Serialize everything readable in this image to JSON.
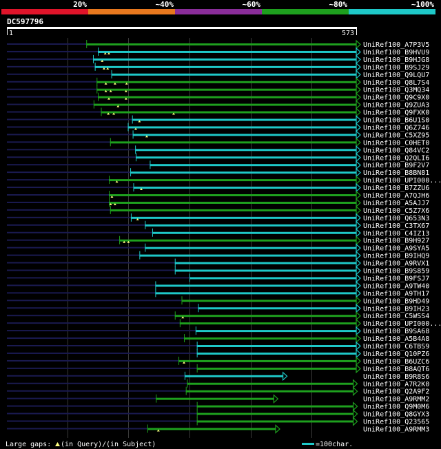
{
  "query_id": "DC597796",
  "query_start": "1",
  "query_end": "573",
  "query_length": 573,
  "identity_scale": [
    {
      "label": "20%",
      "color": "#e0142a"
    },
    {
      "label": "~40%",
      "color": "#e8781e"
    },
    {
      "label": "~60%",
      "color": "#8a2d9a"
    },
    {
      "label": "~80%",
      "color": "#1ea01e"
    },
    {
      "label": "~100%",
      "color": "#1ec8c8"
    }
  ],
  "hits": [
    {
      "id": "UniRef100_A7P3V5",
      "start": 131,
      "end": 573,
      "color": "#1ea01e",
      "gaps": []
    },
    {
      "id": "UniRef100_B9HVU9",
      "start": 150,
      "end": 573,
      "color": "#1ec8c8",
      "gaps": [
        162,
        168
      ]
    },
    {
      "id": "UniRef100_B9HJG8",
      "start": 142,
      "end": 573,
      "color": "#1ec8c8",
      "gaps": [
        157
      ]
    },
    {
      "id": "UniRef100_B9SJ29",
      "start": 145,
      "end": 573,
      "color": "#1ec8c8",
      "gaps": [
        160,
        166
      ]
    },
    {
      "id": "UniRef100_Q9LQU7",
      "start": 172,
      "end": 573,
      "color": "#1ec8c8",
      "gaps": []
    },
    {
      "id": "UniRef100_Q8L7S4",
      "start": 148,
      "end": 573,
      "color": "#1ea01e",
      "gaps": [
        163,
        178,
        197
      ]
    },
    {
      "id": "UniRef100_Q3MQ34",
      "start": 148,
      "end": 573,
      "color": "#1ea01e",
      "gaps": [
        163,
        171,
        196
      ]
    },
    {
      "id": "UniRef100_Q9C9X0",
      "start": 150,
      "end": 573,
      "color": "#1ea01e",
      "gaps": [
        168,
        196
      ]
    },
    {
      "id": "UniRef100_Q9ZUA3",
      "start": 143,
      "end": 573,
      "color": "#1ea01e",
      "gaps": [
        183
      ]
    },
    {
      "id": "UniRef100_Q9FXK0",
      "start": 155,
      "end": 573,
      "color": "#1ea01e",
      "gaps": [
        167,
        176,
        274
      ]
    },
    {
      "id": "UniRef100_B6U1S0",
      "start": 206,
      "end": 573,
      "color": "#1ec8c8",
      "gaps": [
        218
      ]
    },
    {
      "id": "UniRef100_Q6Z746",
      "start": 199,
      "end": 573,
      "color": "#1ec8c8",
      "gaps": [
        212
      ]
    },
    {
      "id": "UniRef100_C5XZ95",
      "start": 207,
      "end": 573,
      "color": "#1ec8c8",
      "gaps": [
        230
      ]
    },
    {
      "id": "UniRef100_C0HET0",
      "start": 170,
      "end": 573,
      "color": "#1ea01e",
      "gaps": []
    },
    {
      "id": "UniRef100_Q84VC2",
      "start": 211,
      "end": 573,
      "color": "#1ec8c8",
      "gaps": []
    },
    {
      "id": "UniRef100_Q2QLI6",
      "start": 212,
      "end": 573,
      "color": "#1ec8c8",
      "gaps": []
    },
    {
      "id": "UniRef100_B9F2V7",
      "start": 235,
      "end": 573,
      "color": "#1ec8c8",
      "gaps": []
    },
    {
      "id": "UniRef100_B8BN81",
      "start": 203,
      "end": 573,
      "color": "#1ec8c8",
      "gaps": []
    },
    {
      "id": "UniRef100_UPI000...",
      "start": 168,
      "end": 573,
      "color": "#1ea01e",
      "gaps": [
        181
      ]
    },
    {
      "id": "UniRef100_B7ZZU6",
      "start": 208,
      "end": 573,
      "color": "#1ec8c8",
      "gaps": [
        221
      ]
    },
    {
      "id": "UniRef100_A7QJH6",
      "start": 168,
      "end": 573,
      "color": "#1ea01e",
      "gaps": [
        173
      ]
    },
    {
      "id": "UniRef100_A5AJJ7",
      "start": 168,
      "end": 573,
      "color": "#1ea01e",
      "gaps": [
        171,
        178
      ]
    },
    {
      "id": "UniRef100_C5Z7X6",
      "start": 170,
      "end": 573,
      "color": "#1ea01e",
      "gaps": []
    },
    {
      "id": "UniRef100_Q653N3",
      "start": 204,
      "end": 573,
      "color": "#1ec8c8",
      "gaps": [
        215
      ]
    },
    {
      "id": "UniRef100_C3TX67",
      "start": 227,
      "end": 573,
      "color": "#1ec8c8",
      "gaps": []
    },
    {
      "id": "UniRef100_C4IZ13",
      "start": 239,
      "end": 573,
      "color": "#1ec8c8",
      "gaps": []
    },
    {
      "id": "UniRef100_B9H927",
      "start": 185,
      "end": 573,
      "color": "#1ea01e",
      "gaps": [
        193,
        200
      ]
    },
    {
      "id": "UniRef100_A9SYA5",
      "start": 227,
      "end": 573,
      "color": "#1ec8c8",
      "gaps": []
    },
    {
      "id": "UniRef100_B9IHQ9",
      "start": 218,
      "end": 573,
      "color": "#1ec8c8",
      "gaps": []
    },
    {
      "id": "UniRef100_A9RVX1",
      "start": 276,
      "end": 573,
      "color": "#1ec8c8",
      "gaps": []
    },
    {
      "id": "UniRef100_B9S859",
      "start": 276,
      "end": 573,
      "color": "#1ec8c8",
      "gaps": []
    },
    {
      "id": "UniRef100_B9FSJ7",
      "start": 300,
      "end": 573,
      "color": "#1ec8c8",
      "gaps": []
    },
    {
      "id": "UniRef100_A9TW40",
      "start": 244,
      "end": 573,
      "color": "#1ec8c8",
      "gaps": []
    },
    {
      "id": "UniRef100_A9TH17",
      "start": 244,
      "end": 573,
      "color": "#1ec8c8",
      "gaps": []
    },
    {
      "id": "UniRef100_B9HD49",
      "start": 287,
      "end": 573,
      "color": "#1ea01e",
      "gaps": []
    },
    {
      "id": "UniRef100_B9IH23",
      "start": 314,
      "end": 573,
      "color": "#1ec8c8",
      "gaps": []
    },
    {
      "id": "UniRef100_C5WSS4",
      "start": 276,
      "end": 573,
      "color": "#1ea01e",
      "gaps": [
        289
      ]
    },
    {
      "id": "UniRef100_UPI000...",
      "start": 284,
      "end": 573,
      "color": "#1ea01e",
      "gaps": []
    },
    {
      "id": "UniRef100_B9SA68",
      "start": 310,
      "end": 573,
      "color": "#1ec8c8",
      "gaps": []
    },
    {
      "id": "UniRef100_A5B4A8",
      "start": 291,
      "end": 573,
      "color": "#1ea01e",
      "gaps": []
    },
    {
      "id": "UniRef100_C6TBS9",
      "start": 312,
      "end": 573,
      "color": "#1ec8c8",
      "gaps": []
    },
    {
      "id": "UniRef100_Q10PZ6",
      "start": 312,
      "end": 573,
      "color": "#1ec8c8",
      "gaps": []
    },
    {
      "id": "UniRef100_B6UZC6",
      "start": 282,
      "end": 573,
      "color": "#1ea01e",
      "gaps": [
        291
      ]
    },
    {
      "id": "UniRef100_B8AQT6",
      "start": 312,
      "end": 573,
      "color": "#1ea01e",
      "gaps": []
    },
    {
      "id": "UniRef100_B9R8S6",
      "start": 292,
      "end": 453,
      "color": "#1ec8c8",
      "gaps": []
    },
    {
      "id": "UniRef100_A7R2K0",
      "start": 296,
      "end": 568,
      "color": "#1ea01e",
      "gaps": []
    },
    {
      "id": "UniRef100_Q2A9F2",
      "start": 294,
      "end": 568,
      "color": "#1ea01e",
      "gaps": []
    },
    {
      "id": "UniRef100_A9RMM2",
      "start": 245,
      "end": 438,
      "color": "#1ea01e",
      "gaps": []
    },
    {
      "id": "UniRef100_Q9M0M6",
      "start": 312,
      "end": 568,
      "color": "#1ea01e",
      "gaps": []
    },
    {
      "id": "UniRef100_Q8GYX3",
      "start": 312,
      "end": 568,
      "color": "#1ea01e",
      "gaps": []
    },
    {
      "id": "UniRef100_Q23565",
      "start": 312,
      "end": 568,
      "color": "#1ea01e",
      "gaps": []
    },
    {
      "id": "UniRef100_A9RMM3",
      "start": 231,
      "end": 441,
      "color": "#1ea01e",
      "gaps": [
        249
      ]
    }
  ],
  "legend": {
    "large_gaps_label": "Large gaps:",
    "in_query": "(in Query)/",
    "in_subject": "(in Subject)",
    "scale_text": "=100char."
  },
  "colors": {
    "background": "#000000",
    "query_bar": "#ffffff",
    "dark_track": "#1a1a50",
    "gap_marker": "#ffff80",
    "grid_line": "#3a3a3a",
    "legend_bar": "#1ec8c8"
  }
}
